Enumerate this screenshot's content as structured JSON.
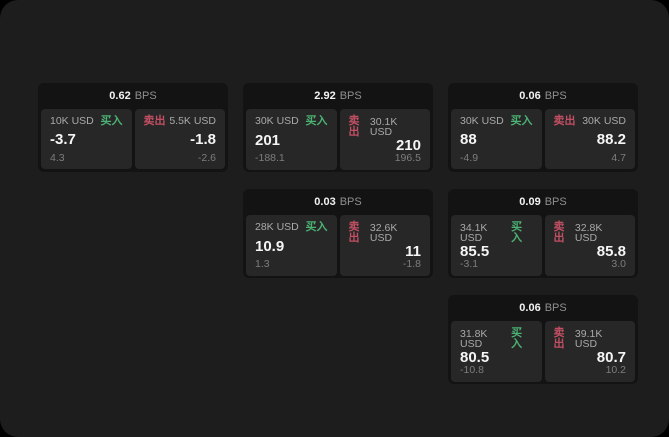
{
  "labels": {
    "bps_suffix": "BPS",
    "buy": "买入",
    "sell": "卖出"
  },
  "colors": {
    "buy_green": "#4bb273",
    "sell_red": "#c14f63",
    "panel_bg": "#272727",
    "card_bg": "#131313",
    "app_bg": "#1d1d1d"
  },
  "cards": [
    {
      "bps": "0.62",
      "buy": {
        "amount": "10K USD",
        "price": "-3.7",
        "delta": "4.3"
      },
      "sell": {
        "amount": "5.5K USD",
        "price": "-1.8",
        "delta": "-2.6"
      }
    },
    {
      "bps": "2.92",
      "buy": {
        "amount": "30K USD",
        "price": "201",
        "delta": "-188.1"
      },
      "sell": {
        "amount": "30.1K USD",
        "price": "210",
        "delta": "196.5"
      }
    },
    {
      "bps": "0.06",
      "buy": {
        "amount": "30K USD",
        "price": "88",
        "delta": "-4.9"
      },
      "sell": {
        "amount": "30K USD",
        "price": "88.2",
        "delta": "4.7"
      }
    },
    {
      "bps": "0.03",
      "buy": {
        "amount": "28K USD",
        "price": "10.9",
        "delta": "1.3"
      },
      "sell": {
        "amount": "32.6K USD",
        "price": "11",
        "delta": "-1.8"
      }
    },
    {
      "bps": "0.09",
      "buy": {
        "amount": "34.1K USD",
        "price": "85.5",
        "delta": "-3.1"
      },
      "sell": {
        "amount": "32.8K USD",
        "price": "85.8",
        "delta": "3.0"
      }
    },
    {
      "bps": "0.06",
      "buy": {
        "amount": "31.8K USD",
        "price": "80.5",
        "delta": "-10.8"
      },
      "sell": {
        "amount": "39.1K USD",
        "price": "80.7",
        "delta": "10.2"
      }
    }
  ]
}
